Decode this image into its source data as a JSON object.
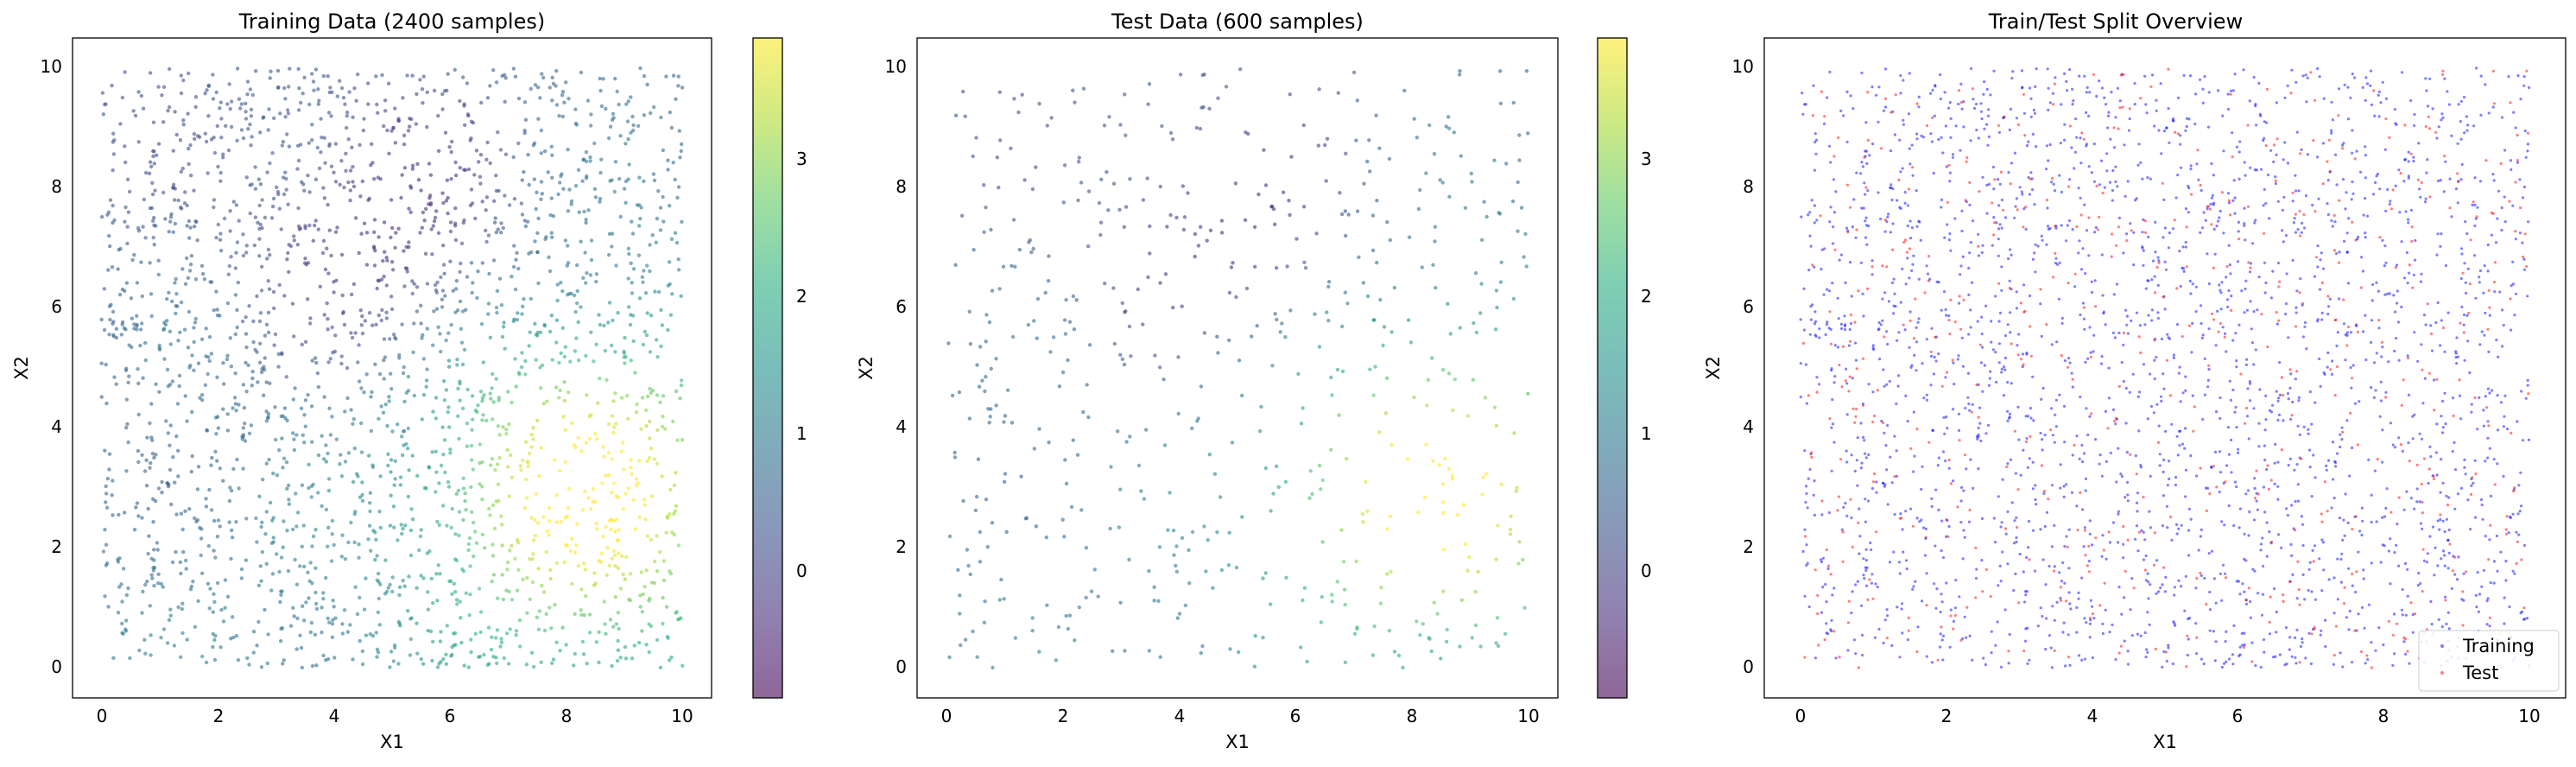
{
  "chart_data": [
    {
      "type": "scatter",
      "title": "Training Data (2400 samples)",
      "xlabel": "X1",
      "ylabel": "X2",
      "xlim": [
        -0.5,
        10.5
      ],
      "ylim": [
        -0.5,
        10.5
      ],
      "xticks": [
        "0",
        "2",
        "4",
        "6",
        "8",
        "10"
      ],
      "yticks": [
        "0",
        "2",
        "4",
        "6",
        "8",
        "10"
      ],
      "colormap": "viridis",
      "color_range": [
        -0.9,
        3.9
      ],
      "colorbar_ticks": [
        "0",
        "1",
        "2",
        "3"
      ],
      "n_points": 2400,
      "alpha": 0.6
    },
    {
      "type": "scatter",
      "title": "Test Data (600 samples)",
      "xlabel": "X1",
      "ylabel": "X2",
      "xlim": [
        -0.5,
        10.5
      ],
      "ylim": [
        -0.5,
        10.5
      ],
      "xticks": [
        "0",
        "2",
        "4",
        "6",
        "8",
        "10"
      ],
      "yticks": [
        "0",
        "2",
        "4",
        "6",
        "8",
        "10"
      ],
      "colormap": "viridis",
      "color_range": [
        -0.9,
        3.9
      ],
      "colorbar_ticks": [
        "0",
        "1",
        "2",
        "3"
      ],
      "n_points": 600,
      "alpha": 0.6
    },
    {
      "type": "scatter",
      "title": "Train/Test Split Overview",
      "xlabel": "X1",
      "ylabel": "X2",
      "xlim": [
        -0.5,
        10.5
      ],
      "ylim": [
        -0.5,
        10.5
      ],
      "xticks": [
        "0",
        "2",
        "4",
        "6",
        "8",
        "10"
      ],
      "yticks": [
        "0",
        "2",
        "4",
        "6",
        "8",
        "10"
      ],
      "legend_position": "lower right",
      "series": [
        {
          "name": "Training",
          "color": "#0000ff",
          "n_points": 2400
        },
        {
          "name": "Test",
          "color": "#ff0000",
          "n_points": 600
        }
      ]
    }
  ]
}
